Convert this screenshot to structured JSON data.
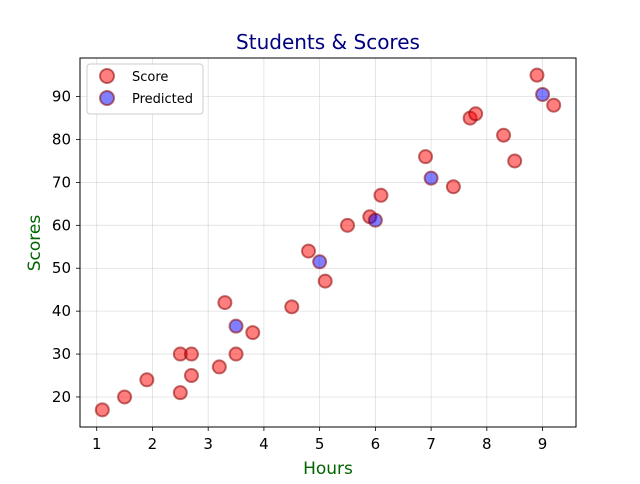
{
  "chart_data": {
    "type": "scatter",
    "title": "Students & Scores",
    "xlabel": "Hours",
    "ylabel": "Scores",
    "xlim": [
      0.7,
      9.6
    ],
    "ylim": [
      13,
      99
    ],
    "xticks": [
      1,
      2,
      3,
      4,
      5,
      6,
      7,
      8,
      9
    ],
    "yticks": [
      20,
      30,
      40,
      50,
      60,
      70,
      80,
      90
    ],
    "grid": true,
    "legend_position": "top-left",
    "colors": {
      "title": "#000080",
      "axis_label": "#006400",
      "score_fill": "#ff0000",
      "score_edge": "#8b0000",
      "predicted_fill": "#0000ff",
      "predicted_edge": "#8b0000"
    },
    "series": [
      {
        "name": "Score",
        "points": [
          [
            1.1,
            17
          ],
          [
            1.5,
            20
          ],
          [
            1.9,
            24
          ],
          [
            2.5,
            21
          ],
          [
            2.5,
            30
          ],
          [
            2.7,
            25
          ],
          [
            2.7,
            30
          ],
          [
            3.2,
            27
          ],
          [
            3.3,
            42
          ],
          [
            3.5,
            30
          ],
          [
            3.8,
            35
          ],
          [
            4.5,
            41
          ],
          [
            4.8,
            54
          ],
          [
            5.1,
            47
          ],
          [
            5.5,
            60
          ],
          [
            5.9,
            62
          ],
          [
            6.1,
            67
          ],
          [
            6.9,
            76
          ],
          [
            7.4,
            69
          ],
          [
            7.7,
            85
          ],
          [
            7.8,
            86
          ],
          [
            8.3,
            81
          ],
          [
            8.5,
            75
          ],
          [
            8.9,
            95
          ],
          [
            9.2,
            88
          ]
        ]
      },
      {
        "name": "Predicted",
        "points": [
          [
            3.5,
            36.5
          ],
          [
            5.0,
            51.5
          ],
          [
            6.0,
            61.2
          ],
          [
            7.0,
            71.0
          ],
          [
            9.0,
            90.5
          ]
        ]
      }
    ]
  }
}
